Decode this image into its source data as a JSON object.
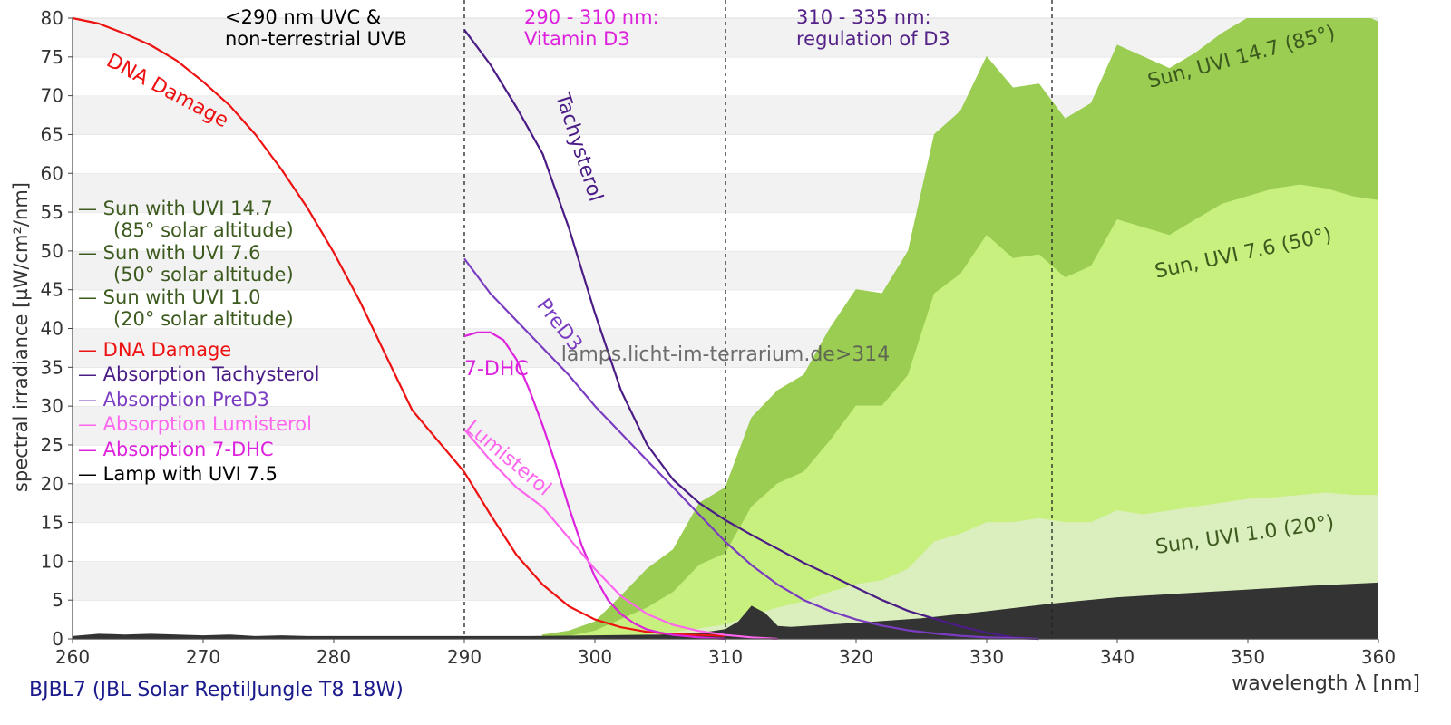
{
  "chart_data": {
    "type": "area",
    "title": "",
    "xlabel": "wavelength λ [nm]",
    "ylabel": "spectral irradiance [µW/cm²/nm]",
    "xlim": [
      260,
      360
    ],
    "ylim": [
      0,
      80
    ],
    "x_ticks": [
      260,
      270,
      280,
      290,
      300,
      310,
      320,
      330,
      340,
      350,
      360
    ],
    "y_ticks": [
      0,
      5,
      10,
      15,
      20,
      25,
      30,
      35,
      40,
      45,
      50,
      55,
      60,
      65,
      70,
      75,
      80
    ],
    "grid": "horizontal bands",
    "legend_position": "left",
    "vlines": [
      290,
      310,
      335
    ],
    "region_labels": [
      {
        "text": "<290 nm UVC &\nnon-terrestrial UVB",
        "color": "#000000"
      },
      {
        "text": "290 - 310 nm:\nVitamin D3",
        "color": "#dd22dd"
      },
      {
        "text": "310 - 335 nm:\nregulation of D3",
        "color": "#552288"
      }
    ],
    "legend": [
      {
        "text": "— Sun with UVI 14.7",
        "color": "#3d5a1e"
      },
      {
        "text": "(85° solar altitude)",
        "color": "#3d5a1e",
        "indent": true
      },
      {
        "text": "— Sun with UVI 7.6",
        "color": "#3d5a1e"
      },
      {
        "text": "(50° solar altitude)",
        "color": "#3d5a1e",
        "indent": true
      },
      {
        "text": "— Sun with UVI 1.0",
        "color": "#3d5a1e"
      },
      {
        "text": "(20° solar altitude)",
        "color": "#3d5a1e",
        "indent": true
      },
      {
        "text": "— DNA Damage",
        "color": "#ee1111"
      },
      {
        "text": "— Absorption Tachysterol",
        "color": "#4b1c85"
      },
      {
        "text": "— Absorption PreD3",
        "color": "#7a3cc0"
      },
      {
        "text": "— Absorption Lumisterol",
        "color": "#ff66ee"
      },
      {
        "text": "— Absorption 7-DHC",
        "color": "#dd22dd"
      },
      {
        "text": "— Lamp with UVI 7.5",
        "color": "#000000"
      }
    ],
    "watermark": "lamps.licht-im-terrarium.de>314",
    "footer": "BJBL7 (JBL Solar ReptilJungle T8 18W)",
    "areas": [
      {
        "name": "Sun, UVI 14.7 (85°)",
        "color": "#9acd52",
        "x": [
          296,
          298,
          300,
          302,
          304,
          306,
          308,
          310,
          312,
          314,
          316,
          318,
          320,
          322,
          324,
          326,
          328,
          330,
          332,
          334,
          336,
          338,
          340,
          342,
          344,
          346,
          348,
          350,
          352,
          354,
          356,
          358,
          360
        ],
        "y": [
          0.5,
          1.0,
          2.2,
          5.5,
          9.0,
          11.5,
          17.5,
          19.5,
          28.5,
          32.0,
          34.0,
          40.0,
          45.0,
          44.5,
          50.0,
          65.0,
          68.0,
          75.0,
          71.0,
          71.5,
          67.0,
          69.0,
          76.5,
          75.0,
          73.5,
          75.5,
          78.0,
          80.0,
          81.0,
          82.0,
          80.5,
          81.0,
          79.5
        ]
      },
      {
        "name": "Sun, UVI 7.6 (50°)",
        "color": "#c8f07e",
        "x": [
          298,
          300,
          302,
          304,
          306,
          308,
          310,
          312,
          314,
          316,
          318,
          320,
          322,
          324,
          326,
          328,
          330,
          332,
          334,
          336,
          338,
          340,
          342,
          344,
          346,
          348,
          350,
          352,
          354,
          356,
          358,
          360
        ],
        "y": [
          0.3,
          1.0,
          2.5,
          4.0,
          6.0,
          9.5,
          11.0,
          17.0,
          20.0,
          21.5,
          25.5,
          30.0,
          30.0,
          34.0,
          44.5,
          47.0,
          52.0,
          49.0,
          49.5,
          46.5,
          48.0,
          54.0,
          53.0,
          52.0,
          54.0,
          56.0,
          57.0,
          58.0,
          58.5,
          58.0,
          57.0,
          56.5
        ]
      },
      {
        "name": "Sun, UVI 1.0 (20°)",
        "color": "#dbeebd",
        "x": [
          302,
          306,
          310,
          312,
          314,
          316,
          318,
          320,
          322,
          324,
          326,
          328,
          330,
          332,
          334,
          336,
          338,
          340,
          342,
          344,
          346,
          348,
          350,
          352,
          354,
          356,
          358,
          360
        ],
        "y": [
          0.2,
          0.8,
          1.8,
          3.0,
          4.0,
          4.8,
          6.0,
          7.0,
          7.5,
          9.0,
          12.5,
          13.5,
          15.0,
          15.0,
          15.5,
          15.0,
          15.0,
          16.5,
          16.0,
          16.5,
          17.0,
          17.5,
          18.0,
          18.2,
          18.5,
          18.8,
          18.5,
          18.5
        ]
      },
      {
        "name": "Lamp with UVI 7.5",
        "color": "#333333",
        "x": [
          260,
          262,
          264,
          266,
          268,
          270,
          272,
          274,
          276,
          278,
          280,
          285,
          290,
          295,
          300,
          305,
          308,
          310,
          311,
          312,
          313,
          314,
          315,
          320,
          325,
          330,
          335,
          340,
          345,
          350,
          355,
          360
        ],
        "y": [
          0.3,
          0.6,
          0.5,
          0.6,
          0.5,
          0.4,
          0.5,
          0.3,
          0.4,
          0.3,
          0.3,
          0.3,
          0.3,
          0.3,
          0.4,
          0.5,
          0.7,
          1.2,
          2.2,
          4.2,
          3.3,
          1.6,
          1.5,
          2.0,
          2.6,
          3.5,
          4.5,
          5.3,
          5.8,
          6.3,
          6.8,
          7.2
        ]
      }
    ],
    "series": [
      {
        "name": "DNA Damage",
        "color": "#ee1111",
        "x": [
          260,
          262,
          264,
          266,
          268,
          270,
          272,
          274,
          276,
          278,
          280,
          282,
          284,
          286,
          288,
          290,
          292,
          294,
          296,
          298,
          300,
          302,
          304,
          306,
          308,
          310
        ],
        "y": [
          80.0,
          79.3,
          78.0,
          76.5,
          74.5,
          71.8,
          68.8,
          65.0,
          60.5,
          55.5,
          49.8,
          43.5,
          36.5,
          29.5,
          25.5,
          21.5,
          16.0,
          10.8,
          7.0,
          4.2,
          2.5,
          1.5,
          0.9,
          0.6,
          0.5,
          0.4
        ]
      },
      {
        "name": "Tachysterol",
        "color": "#4b1c85",
        "x": [
          290,
          292,
          294,
          296,
          298,
          300,
          302,
          304,
          306,
          308,
          310,
          312,
          314,
          316,
          318,
          320,
          322,
          324,
          326,
          328,
          330,
          332,
          334
        ],
        "y": [
          78.5,
          74.0,
          68.5,
          62.5,
          53.0,
          42.0,
          32.0,
          25.0,
          20.5,
          17.5,
          15.3,
          13.4,
          11.6,
          9.8,
          8.2,
          6.6,
          5.0,
          3.6,
          2.6,
          1.6,
          0.8,
          0.2,
          0.0
        ]
      },
      {
        "name": "PreD3",
        "color": "#7a3cc0",
        "x": [
          290,
          292,
          294,
          296,
          298,
          300,
          302,
          304,
          306,
          308,
          310,
          312,
          314,
          316,
          318,
          320,
          322,
          324,
          326,
          328,
          330,
          332,
          334
        ],
        "y": [
          49.0,
          44.5,
          41.0,
          37.5,
          34.0,
          30.0,
          26.5,
          23.0,
          19.5,
          16.0,
          12.5,
          9.5,
          7.0,
          5.0,
          3.6,
          2.5,
          1.7,
          1.1,
          0.7,
          0.4,
          0.2,
          0.1,
          0.0
        ]
      },
      {
        "name": "7-DHC",
        "color": "#dd22dd",
        "x": [
          290,
          291,
          292,
          293,
          294,
          295,
          296,
          297,
          298,
          299,
          300,
          301,
          302,
          303,
          304,
          305,
          306,
          308,
          310
        ],
        "y": [
          39.0,
          39.5,
          39.5,
          38.5,
          36.0,
          32.0,
          27.5,
          22.5,
          17.0,
          12.0,
          8.0,
          5.0,
          3.2,
          2.0,
          1.2,
          0.8,
          0.5,
          0.2,
          0.0
        ]
      },
      {
        "name": "Lumisterol",
        "color": "#ff66ee",
        "x": [
          290,
          292,
          294,
          296,
          298,
          300,
          302,
          304,
          306,
          308,
          310,
          312,
          314
        ],
        "y": [
          27.0,
          23.0,
          19.5,
          17.0,
          13.0,
          9.0,
          5.5,
          3.2,
          1.8,
          1.0,
          0.5,
          0.2,
          0.0
        ]
      }
    ],
    "curve_labels": [
      {
        "text": "DNA Damage",
        "color": "#ee1111",
        "x": 262.5,
        "y": 74,
        "rotate": 28
      },
      {
        "text": "Tachysterol",
        "color": "#4b1c85",
        "x": 297,
        "y": 70,
        "rotate": 72
      },
      {
        "text": "PreD3",
        "color": "#7a3cc0",
        "x": 295.5,
        "y": 43,
        "rotate": 52
      },
      {
        "text": "7-DHC",
        "color": "#dd22dd",
        "x": 290,
        "y": 34,
        "rotate": 0
      },
      {
        "text": "Lumisterol",
        "color": "#ff66ee",
        "x": 290,
        "y": 27,
        "rotate": 40
      },
      {
        "text": "Sun, UVI 14.7 (85°)",
        "color": "#3d5a1e",
        "x": 342.5,
        "y": 71,
        "rotate": -15
      },
      {
        "text": "Sun, UVI 7.6 (50°)",
        "color": "#3d5a1e",
        "x": 343,
        "y": 46.5,
        "rotate": -12
      },
      {
        "text": "Sun, UVI 1.0 (20°)",
        "color": "#3d5a1e",
        "x": 343,
        "y": 11,
        "rotate": -8
      }
    ]
  }
}
